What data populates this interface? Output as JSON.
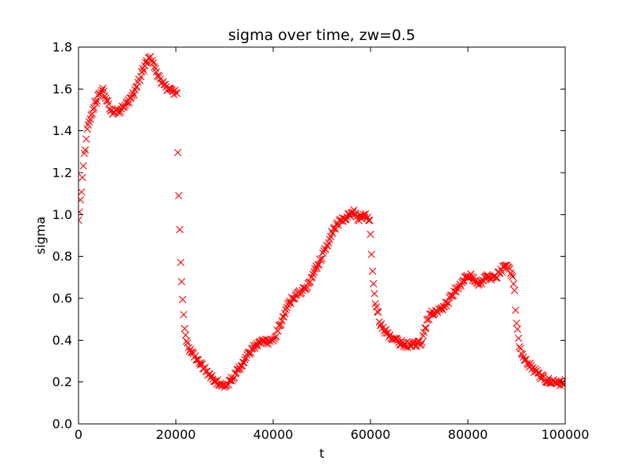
{
  "chart_data": {
    "type": "scatter",
    "title": "sigma over time, zw=0.5",
    "xlabel": "t",
    "ylabel": "sigma",
    "xlim": [
      0,
      100000
    ],
    "ylim": [
      0.0,
      1.8
    ],
    "xticks": [
      0,
      20000,
      40000,
      60000,
      80000,
      100000
    ],
    "xtick_labels": [
      "0",
      "20000",
      "40000",
      "60000",
      "80000",
      "100000"
    ],
    "yticks": [
      0.0,
      0.2,
      0.4,
      0.6,
      0.8,
      1.0,
      1.2,
      1.4,
      1.6,
      1.8
    ],
    "ytick_labels": [
      "0.0",
      "0.2",
      "0.4",
      "0.6",
      "0.8",
      "1.0",
      "1.2",
      "1.4",
      "1.6",
      "1.8"
    ],
    "grid": false,
    "legend": "none",
    "marker": {
      "shape": "x",
      "color": "#ff0000",
      "size": 8.6,
      "stroke_width": 1.1
    },
    "colors": {
      "marker": "#ff0000",
      "axis": "#000000",
      "background": "#ffffff"
    },
    "sampling": {
      "t_start": 0,
      "t_end": 100000,
      "t_step": 200,
      "noise_amplitude": 0.013
    },
    "keyframes": [
      [
        0,
        0.97
      ],
      [
        300,
        1.05
      ],
      [
        600,
        1.12
      ],
      [
        900,
        1.2
      ],
      [
        1200,
        1.28
      ],
      [
        1500,
        1.34
      ],
      [
        1800,
        1.4
      ],
      [
        2100,
        1.44
      ],
      [
        2600,
        1.48
      ],
      [
        3200,
        1.52
      ],
      [
        3800,
        1.55
      ],
      [
        4400,
        1.58
      ],
      [
        5000,
        1.6
      ],
      [
        5600,
        1.56
      ],
      [
        6200,
        1.52
      ],
      [
        7000,
        1.49
      ],
      [
        7800,
        1.51
      ],
      [
        8600,
        1.49
      ],
      [
        9400,
        1.52
      ],
      [
        10200,
        1.54
      ],
      [
        11000,
        1.56
      ],
      [
        11800,
        1.6
      ],
      [
        12600,
        1.65
      ],
      [
        13400,
        1.7
      ],
      [
        14100,
        1.73
      ],
      [
        14700,
        1.76
      ],
      [
        15300,
        1.72
      ],
      [
        16000,
        1.68
      ],
      [
        16700,
        1.64
      ],
      [
        17500,
        1.62
      ],
      [
        18300,
        1.6
      ],
      [
        19200,
        1.59
      ],
      [
        20200,
        1.58
      ],
      [
        20400,
        1.3
      ],
      [
        20600,
        1.09
      ],
      [
        20800,
        0.92
      ],
      [
        21000,
        0.78
      ],
      [
        21200,
        0.68
      ],
      [
        21400,
        0.59
      ],
      [
        21600,
        0.52
      ],
      [
        21800,
        0.46
      ],
      [
        22000,
        0.42
      ],
      [
        22400,
        0.385
      ],
      [
        22900,
        0.355
      ],
      [
        23500,
        0.335
      ],
      [
        24300,
        0.315
      ],
      [
        25200,
        0.285
      ],
      [
        26200,
        0.255
      ],
      [
        27200,
        0.23
      ],
      [
        28200,
        0.205
      ],
      [
        29000,
        0.19
      ],
      [
        30000,
        0.185
      ],
      [
        31000,
        0.2
      ],
      [
        32000,
        0.23
      ],
      [
        33000,
        0.26
      ],
      [
        34000,
        0.3
      ],
      [
        35000,
        0.34
      ],
      [
        36000,
        0.37
      ],
      [
        37000,
        0.39
      ],
      [
        37800,
        0.405
      ],
      [
        38600,
        0.395
      ],
      [
        39400,
        0.385
      ],
      [
        40200,
        0.41
      ],
      [
        41000,
        0.45
      ],
      [
        42000,
        0.5
      ],
      [
        43000,
        0.56
      ],
      [
        44000,
        0.6
      ],
      [
        45000,
        0.62
      ],
      [
        46000,
        0.64
      ],
      [
        47000,
        0.66
      ],
      [
        48000,
        0.71
      ],
      [
        49000,
        0.75
      ],
      [
        50000,
        0.8
      ],
      [
        51000,
        0.85
      ],
      [
        52000,
        0.91
      ],
      [
        53000,
        0.95
      ],
      [
        54000,
        0.97
      ],
      [
        55000,
        0.99
      ],
      [
        55800,
        1.005
      ],
      [
        56600,
        1.02
      ],
      [
        57400,
        0.975
      ],
      [
        58200,
        0.99
      ],
      [
        59000,
        1.0
      ],
      [
        59800,
        0.975
      ],
      [
        60000,
        0.9
      ],
      [
        60200,
        0.8
      ],
      [
        60400,
        0.72
      ],
      [
        60600,
        0.67
      ],
      [
        60800,
        0.62
      ],
      [
        61000,
        0.58
      ],
      [
        61300,
        0.55
      ],
      [
        61600,
        0.525
      ],
      [
        62000,
        0.47
      ],
      [
        63000,
        0.445
      ],
      [
        64000,
        0.42
      ],
      [
        65000,
        0.405
      ],
      [
        66000,
        0.39
      ],
      [
        67000,
        0.38
      ],
      [
        68000,
        0.375
      ],
      [
        69000,
        0.38
      ],
      [
        70000,
        0.385
      ],
      [
        70600,
        0.39
      ],
      [
        71000,
        0.43
      ],
      [
        71400,
        0.47
      ],
      [
        71800,
        0.5
      ],
      [
        72200,
        0.52
      ],
      [
        72600,
        0.53
      ],
      [
        73300,
        0.525
      ],
      [
        74000,
        0.545
      ],
      [
        74800,
        0.555
      ],
      [
        75600,
        0.575
      ],
      [
        76400,
        0.6
      ],
      [
        77200,
        0.63
      ],
      [
        78000,
        0.655
      ],
      [
        78800,
        0.675
      ],
      [
        79600,
        0.7
      ],
      [
        80400,
        0.71
      ],
      [
        81200,
        0.69
      ],
      [
        82000,
        0.67
      ],
      [
        82800,
        0.68
      ],
      [
        83600,
        0.7
      ],
      [
        84400,
        0.7
      ],
      [
        85200,
        0.695
      ],
      [
        86000,
        0.71
      ],
      [
        86800,
        0.73
      ],
      [
        87600,
        0.76
      ],
      [
        88200,
        0.745
      ],
      [
        88800,
        0.72
      ],
      [
        89300,
        0.7
      ],
      [
        89600,
        0.63
      ],
      [
        89800,
        0.54
      ],
      [
        90000,
        0.49
      ],
      [
        90200,
        0.44
      ],
      [
        90400,
        0.4
      ],
      [
        90700,
        0.37
      ],
      [
        91000,
        0.345
      ],
      [
        91400,
        0.325
      ],
      [
        92000,
        0.3
      ],
      [
        92700,
        0.28
      ],
      [
        93500,
        0.26
      ],
      [
        94300,
        0.24
      ],
      [
        95200,
        0.225
      ],
      [
        96200,
        0.21
      ],
      [
        97200,
        0.205
      ],
      [
        98200,
        0.2
      ],
      [
        99200,
        0.195
      ],
      [
        100000,
        0.2
      ]
    ]
  }
}
